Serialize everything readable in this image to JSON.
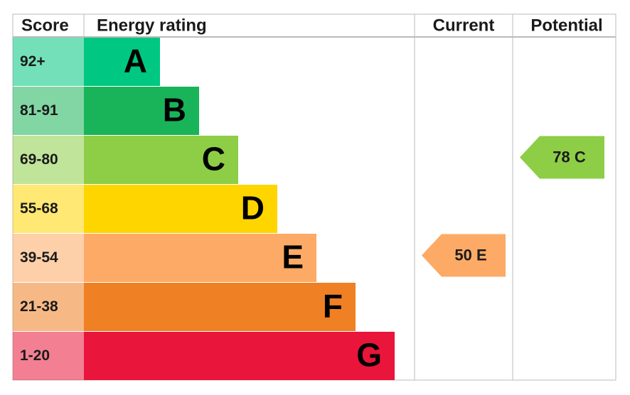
{
  "header": {
    "score": "Score",
    "rating": "Energy rating",
    "current": "Current",
    "potential": "Potential"
  },
  "bands": [
    {
      "score": "92+",
      "letter": "A",
      "color": "#00c781"
    },
    {
      "score": "81-91",
      "letter": "B",
      "color": "#19b459"
    },
    {
      "score": "69-80",
      "letter": "C",
      "color": "#8dce46"
    },
    {
      "score": "55-68",
      "letter": "D",
      "color": "#ffd500"
    },
    {
      "score": "39-54",
      "letter": "E",
      "color": "#fcaa65"
    },
    {
      "score": "21-38",
      "letter": "F",
      "color": "#ef8023"
    },
    {
      "score": "1-20",
      "letter": "G",
      "color": "#e9153b"
    }
  ],
  "current": "50 E",
  "potential": "78 C"
}
